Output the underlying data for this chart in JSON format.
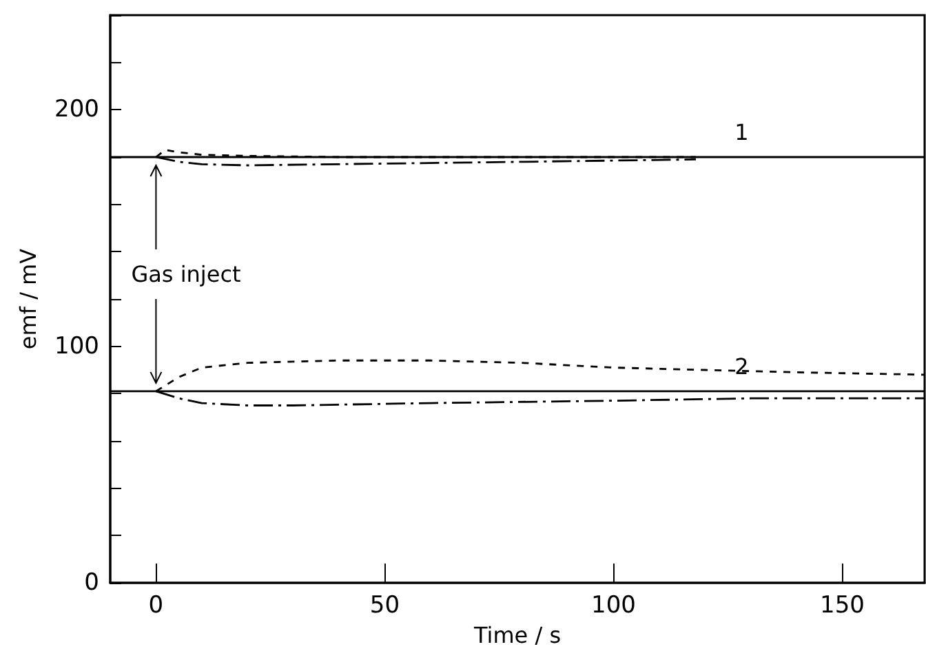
{
  "chart_data": {
    "type": "line",
    "xlabel": "Time / s",
    "ylabel": "emf / mV",
    "xlim": [
      -10,
      168
    ],
    "xticks": [
      0,
      50,
      100,
      150
    ],
    "ylim": [
      0,
      240
    ],
    "yticks": [
      0,
      {
        "value": 20,
        "label": null
      },
      {
        "value": 40,
        "label": null
      },
      {
        "value": 60,
        "label": null
      },
      {
        "value": 80,
        "label": null
      },
      100,
      {
        "value": 120,
        "label": null
      },
      {
        "value": 140,
        "label": null
      },
      {
        "value": 160,
        "label": null
      },
      {
        "value": 180,
        "label": null
      },
      200,
      {
        "value": 220,
        "label": null
      },
      {
        "value": 240,
        "label": null
      }
    ],
    "grid": false,
    "marker": "none",
    "series": [
      {
        "color": "#000000",
        "line_style": "solid",
        "x": [
          -10,
          168
        ],
        "values": [
          180,
          180
        ]
      },
      {
        "color": "#000000",
        "line_style": "dashed",
        "x": [
          0,
          2,
          5,
          10,
          20,
          40,
          80,
          118
        ],
        "values": [
          180,
          183,
          182,
          181,
          180.5,
          180,
          180,
          180
        ]
      },
      {
        "color": "#000000",
        "line_style": "dashdot",
        "x": [
          0,
          5,
          10,
          20,
          40,
          80,
          118
        ],
        "values": [
          180,
          178,
          177,
          176.5,
          177,
          178,
          179
        ]
      },
      {
        "color": "#000000",
        "line_style": "solid",
        "x": [
          -10,
          168
        ],
        "values": [
          81,
          81
        ]
      },
      {
        "color": "#000000",
        "line_style": "dashed",
        "x": [
          0,
          5,
          10,
          20,
          40,
          60,
          80,
          100,
          120,
          140,
          168
        ],
        "values": [
          81,
          87,
          91,
          93,
          94,
          94,
          93,
          91,
          90,
          89,
          88
        ]
      },
      {
        "color": "#000000",
        "line_style": "dashdot",
        "x": [
          0,
          5,
          10,
          20,
          30,
          60,
          100,
          130,
          168
        ],
        "values": [
          81,
          78,
          76,
          75,
          75,
          76,
          77,
          78,
          78
        ]
      }
    ],
    "annotations": [
      {
        "text": "1",
        "x": 128,
        "y": 180
      },
      {
        "text": "2",
        "x": 128,
        "y": 81
      },
      "Gas inject"
    ]
  }
}
